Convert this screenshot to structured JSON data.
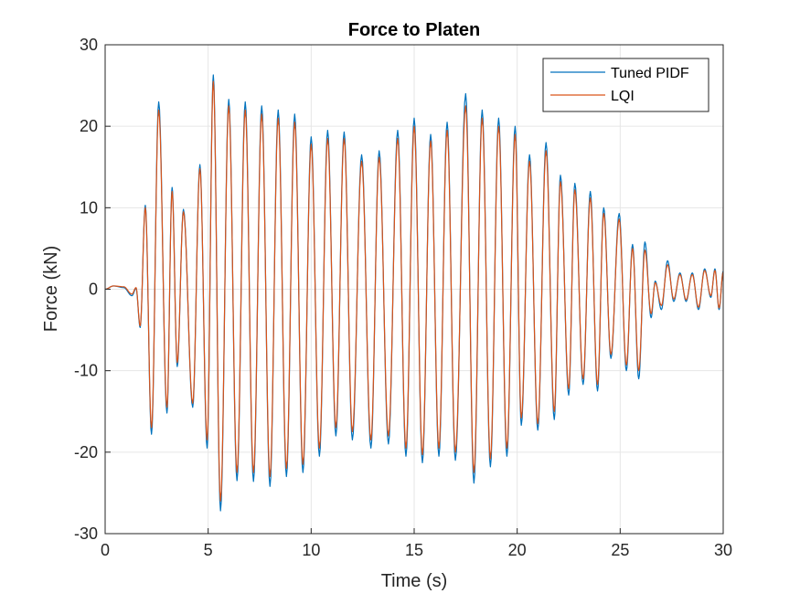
{
  "chart_data": {
    "type": "line",
    "title": "Force to Platen",
    "xlabel": "Time (s)",
    "ylabel": "Force (kN)",
    "xlim": [
      0,
      30
    ],
    "ylim": [
      -30,
      30
    ],
    "xticks": [
      0,
      5,
      10,
      15,
      20,
      25,
      30
    ],
    "yticks": [
      -30,
      -20,
      -10,
      0,
      10,
      20,
      30
    ],
    "xtick_labels": [
      "0",
      "5",
      "10",
      "15",
      "20",
      "25",
      "30"
    ],
    "ytick_labels": [
      "-30",
      "-20",
      "-10",
      "0",
      "10",
      "20",
      "30"
    ],
    "grid": true,
    "legend_position": "top-right",
    "series": [
      {
        "name": "Tuned PIDF",
        "color": "#0072BD",
        "peaks": [
          [
            0.0,
            0.0
          ],
          [
            0.4,
            0.4
          ],
          [
            0.9,
            0.2
          ],
          [
            1.3,
            -0.8
          ],
          [
            1.5,
            0.1
          ],
          [
            1.7,
            -4.7
          ],
          [
            1.95,
            10.3
          ],
          [
            2.25,
            -17.8
          ],
          [
            2.6,
            23.0
          ],
          [
            3.0,
            -15.2
          ],
          [
            3.25,
            12.5
          ],
          [
            3.5,
            -9.5
          ],
          [
            3.8,
            9.8
          ],
          [
            4.25,
            -14.5
          ],
          [
            4.6,
            15.3
          ],
          [
            4.95,
            -19.5
          ],
          [
            5.25,
            26.3
          ],
          [
            5.6,
            -27.2
          ],
          [
            6.0,
            23.3
          ],
          [
            6.4,
            -23.5
          ],
          [
            6.8,
            23.0
          ],
          [
            7.2,
            -23.6
          ],
          [
            7.6,
            22.5
          ],
          [
            8.0,
            -24.2
          ],
          [
            8.4,
            22.0
          ],
          [
            8.8,
            -23.0
          ],
          [
            9.2,
            21.5
          ],
          [
            9.6,
            -22.5
          ],
          [
            10.0,
            18.7
          ],
          [
            10.4,
            -20.5
          ],
          [
            10.8,
            19.5
          ],
          [
            11.2,
            -18.0
          ],
          [
            11.6,
            19.3
          ],
          [
            12.0,
            -18.5
          ],
          [
            12.45,
            16.5
          ],
          [
            12.9,
            -19.5
          ],
          [
            13.3,
            17.0
          ],
          [
            13.75,
            -19.0
          ],
          [
            14.2,
            19.5
          ],
          [
            14.6,
            -20.5
          ],
          [
            15.0,
            21.0
          ],
          [
            15.4,
            -21.3
          ],
          [
            15.8,
            19.0
          ],
          [
            16.2,
            -20.5
          ],
          [
            16.6,
            20.5
          ],
          [
            17.0,
            -21.0
          ],
          [
            17.5,
            24.0
          ],
          [
            17.9,
            -23.8
          ],
          [
            18.3,
            22.0
          ],
          [
            18.7,
            -21.8
          ],
          [
            19.1,
            21.0
          ],
          [
            19.5,
            -20.5
          ],
          [
            19.9,
            20.0
          ],
          [
            20.2,
            -16.7
          ],
          [
            20.6,
            16.5
          ],
          [
            21.0,
            -17.3
          ],
          [
            21.4,
            18.0
          ],
          [
            21.8,
            -16.0
          ],
          [
            22.1,
            14.0
          ],
          [
            22.5,
            -13.0
          ],
          [
            22.8,
            13.0
          ],
          [
            23.2,
            -11.7
          ],
          [
            23.55,
            12.0
          ],
          [
            23.9,
            -12.5
          ],
          [
            24.2,
            10.0
          ],
          [
            24.55,
            -8.5
          ],
          [
            24.95,
            9.3
          ],
          [
            25.3,
            -10.0
          ],
          [
            25.6,
            5.5
          ],
          [
            25.9,
            -11.0
          ],
          [
            26.2,
            5.8
          ],
          [
            26.5,
            -3.5
          ],
          [
            26.7,
            1.0
          ],
          [
            27.0,
            -2.5
          ],
          [
            27.3,
            3.5
          ],
          [
            27.6,
            -1.5
          ],
          [
            27.9,
            2.0
          ],
          [
            28.2,
            -1.5
          ],
          [
            28.5,
            2.0
          ],
          [
            28.8,
            -2.5
          ],
          [
            29.1,
            2.5
          ],
          [
            29.4,
            -1.0
          ],
          [
            29.6,
            2.5
          ],
          [
            29.8,
            -2.5
          ],
          [
            30.0,
            2.2
          ]
        ]
      },
      {
        "name": "LQI",
        "color": "#D95319",
        "peaks": [
          [
            0.0,
            0.0
          ],
          [
            0.4,
            0.4
          ],
          [
            0.9,
            0.3
          ],
          [
            1.3,
            -0.6
          ],
          [
            1.5,
            0.2
          ],
          [
            1.7,
            -4.5
          ],
          [
            1.95,
            10.0
          ],
          [
            2.25,
            -17.0
          ],
          [
            2.6,
            22.0
          ],
          [
            3.0,
            -14.5
          ],
          [
            3.25,
            12.0
          ],
          [
            3.5,
            -9.0
          ],
          [
            3.8,
            9.5
          ],
          [
            4.25,
            -14.0
          ],
          [
            4.6,
            14.8
          ],
          [
            4.95,
            -18.5
          ],
          [
            5.25,
            25.5
          ],
          [
            5.6,
            -26.0
          ],
          [
            6.0,
            22.5
          ],
          [
            6.4,
            -22.5
          ],
          [
            6.8,
            22.0
          ],
          [
            7.2,
            -22.5
          ],
          [
            7.6,
            21.5
          ],
          [
            8.0,
            -23.0
          ],
          [
            8.4,
            21.0
          ],
          [
            8.8,
            -22.0
          ],
          [
            9.2,
            20.5
          ],
          [
            9.6,
            -21.5
          ],
          [
            10.0,
            17.8
          ],
          [
            10.4,
            -19.5
          ],
          [
            10.8,
            18.5
          ],
          [
            11.2,
            -17.0
          ],
          [
            11.6,
            18.5
          ],
          [
            12.0,
            -17.5
          ],
          [
            12.45,
            15.7
          ],
          [
            12.9,
            -18.5
          ],
          [
            13.3,
            16.2
          ],
          [
            13.75,
            -18.0
          ],
          [
            14.2,
            18.5
          ],
          [
            14.6,
            -19.5
          ],
          [
            15.0,
            20.0
          ],
          [
            15.4,
            -20.3
          ],
          [
            15.8,
            18.2
          ],
          [
            16.2,
            -19.5
          ],
          [
            16.6,
            19.5
          ],
          [
            17.0,
            -20.0
          ],
          [
            17.5,
            22.5
          ],
          [
            17.9,
            -22.5
          ],
          [
            18.3,
            21.0
          ],
          [
            18.7,
            -20.8
          ],
          [
            19.1,
            20.0
          ],
          [
            19.5,
            -19.5
          ],
          [
            19.9,
            19.0
          ],
          [
            20.2,
            -15.8
          ],
          [
            20.6,
            15.7
          ],
          [
            21.0,
            -16.5
          ],
          [
            21.4,
            17.0
          ],
          [
            21.8,
            -15.0
          ],
          [
            22.1,
            13.2
          ],
          [
            22.5,
            -12.2
          ],
          [
            22.8,
            12.2
          ],
          [
            23.2,
            -11.0
          ],
          [
            23.55,
            11.2
          ],
          [
            23.9,
            -11.7
          ],
          [
            24.2,
            9.3
          ],
          [
            24.55,
            -8.0
          ],
          [
            24.95,
            8.6
          ],
          [
            25.3,
            -9.3
          ],
          [
            25.6,
            5.0
          ],
          [
            25.9,
            -10.0
          ],
          [
            26.2,
            4.8
          ],
          [
            26.5,
            -3.0
          ],
          [
            26.7,
            0.8
          ],
          [
            27.0,
            -2.0
          ],
          [
            27.3,
            3.0
          ],
          [
            27.6,
            -1.2
          ],
          [
            27.9,
            1.8
          ],
          [
            28.2,
            -1.3
          ],
          [
            28.5,
            1.8
          ],
          [
            28.8,
            -2.2
          ],
          [
            29.1,
            2.3
          ],
          [
            29.4,
            -0.8
          ],
          [
            29.6,
            2.3
          ],
          [
            29.8,
            -2.3
          ],
          [
            30.0,
            2.1
          ]
        ]
      }
    ]
  }
}
